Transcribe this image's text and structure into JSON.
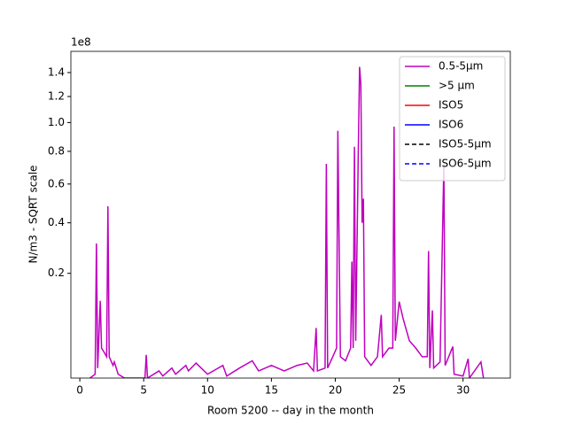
{
  "chart_data": {
    "type": "line",
    "x_label": "Room 5200 -- day in the month",
    "y_label": "N/m3 - SQRT scale",
    "y_offset_label": "1e8",
    "yscale": "sqrt",
    "xlim": [
      -0.7,
      33.7
    ],
    "ylim": [
      0.004,
      1.59
    ],
    "xticks": [
      0,
      5,
      10,
      15,
      20,
      25,
      30
    ],
    "yticks": [
      0.2,
      0.4,
      0.6,
      0.8,
      {
        "value": 1.0,
        "label": "1.0"
      },
      1.2,
      1.4
    ],
    "legend": "upper right",
    "x": [
      0.8,
      1.2,
      1.3,
      1.4,
      1.6,
      1.7,
      1.9,
      2.1,
      2.2,
      2.3,
      2.6,
      2.7,
      3.0,
      3.5,
      5.1,
      5.2,
      5.3,
      6.2,
      6.5,
      7.2,
      7.5,
      8.3,
      8.5,
      9.1,
      9.5,
      10.0,
      11.2,
      11.5,
      12.5,
      13.5,
      14.0,
      15.0,
      16.0,
      17.0,
      17.8,
      18.3,
      18.5,
      18.6,
      19.2,
      19.3,
      19.4,
      19.8,
      20.1,
      20.2,
      20.4,
      20.8,
      21.2,
      21.3,
      21.4,
      21.5,
      21.6,
      21.8,
      21.9,
      22.0,
      22.1,
      22.2,
      22.3,
      22.8,
      23.3,
      23.6,
      23.7,
      24.2,
      24.5,
      24.6,
      24.7,
      25.0,
      25.3,
      25.8,
      26.3,
      26.8,
      27.2,
      27.3,
      27.4,
      27.6,
      27.7,
      28.2,
      28.5,
      28.6,
      29.2,
      29.3,
      30.0,
      30.4,
      30.5,
      31.4,
      31.6
    ],
    "series": [
      {
        "name": "0.5-5µm",
        "color": "#bf00bf",
        "dash": "solid",
        "values": [
          0.004,
          0.006,
          0.31,
          0.01,
          0.12,
          0.03,
          0.025,
          0.02,
          0.48,
          0.02,
          0.012,
          0.015,
          0.006,
          0.004,
          0.004,
          0.022,
          0.004,
          0.008,
          0.005,
          0.01,
          0.006,
          0.012,
          0.008,
          0.014,
          0.01,
          0.006,
          0.012,
          0.005,
          0.01,
          0.016,
          0.008,
          0.012,
          0.008,
          0.012,
          0.014,
          0.008,
          0.061,
          0.008,
          0.01,
          0.72,
          0.01,
          0.02,
          0.03,
          0.94,
          0.02,
          0.016,
          0.03,
          0.24,
          0.03,
          0.83,
          0.04,
          0.8,
          1.45,
          1.3,
          0.4,
          0.52,
          0.02,
          0.012,
          0.02,
          0.087,
          0.02,
          0.03,
          0.03,
          0.97,
          0.04,
          0.118,
          0.08,
          0.04,
          0.03,
          0.02,
          0.02,
          0.28,
          0.01,
          0.097,
          0.01,
          0.015,
          0.72,
          0.012,
          0.032,
          0.006,
          0.005,
          0.018,
          0.004,
          0.015,
          0.004
        ]
      },
      {
        "name": ">5 µm",
        "color": "#008000",
        "dash": "solid"
      },
      {
        "name": "ISO5",
        "color": "#ff0000",
        "dash": "solid"
      },
      {
        "name": "ISO6",
        "color": "#0000ff",
        "dash": "solid"
      },
      {
        "name": "ISO5-5µm",
        "color": "#000000",
        "dash": "dashed"
      },
      {
        "name": "ISO6-5µm",
        "color": "#0000ff",
        "dash": "dashed"
      }
    ]
  }
}
